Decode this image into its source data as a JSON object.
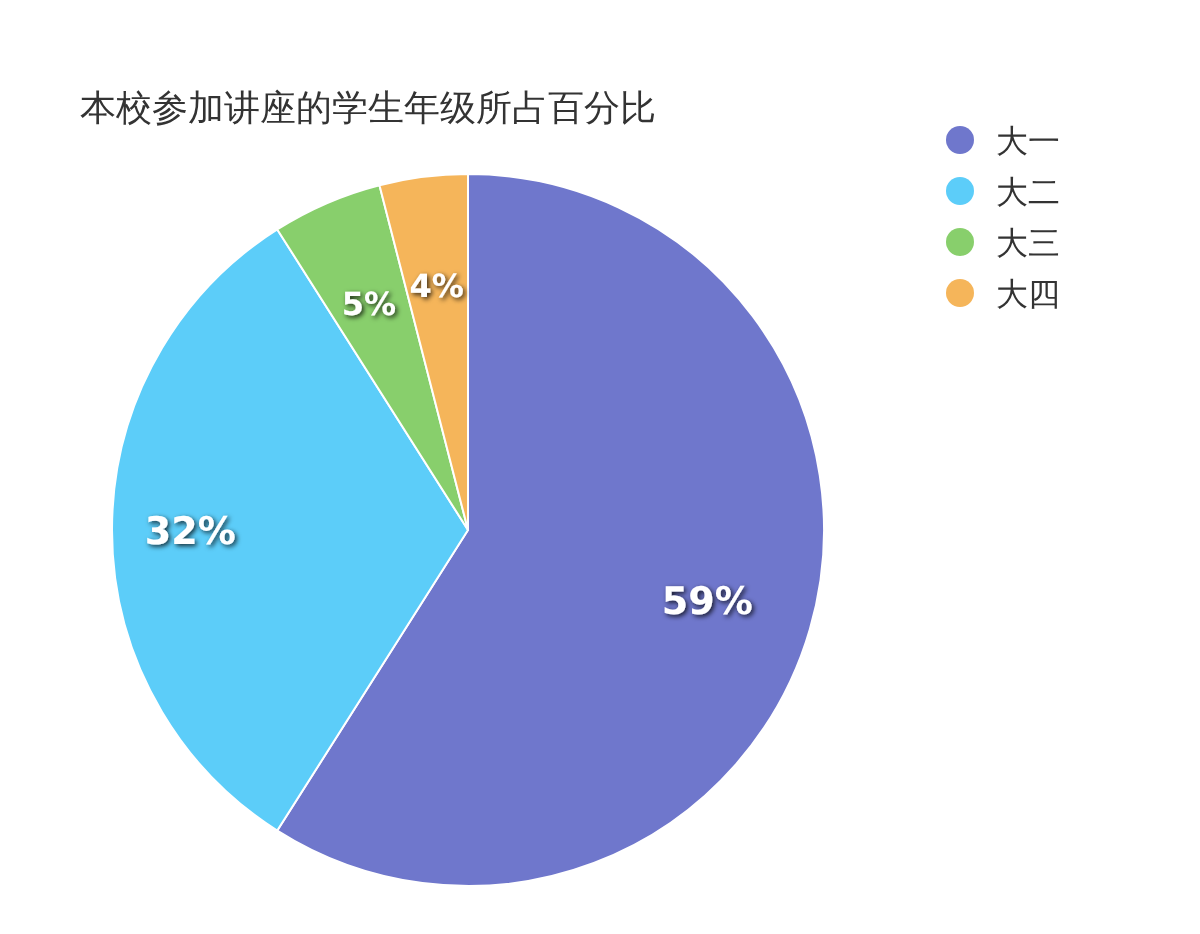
{
  "chart_data": {
    "type": "pie",
    "title": "本校参加讲座的学生年级所占百分比",
    "categories": [
      "大一",
      "大二",
      "大三",
      "大四"
    ],
    "values": [
      59,
      32,
      5,
      4
    ],
    "colors": [
      "#6f77cc",
      "#5ccdf9",
      "#88cf6c",
      "#f5b55a"
    ],
    "value_labels": [
      "59%",
      "32%",
      "5%",
      "4%"
    ],
    "legend": "top right"
  }
}
